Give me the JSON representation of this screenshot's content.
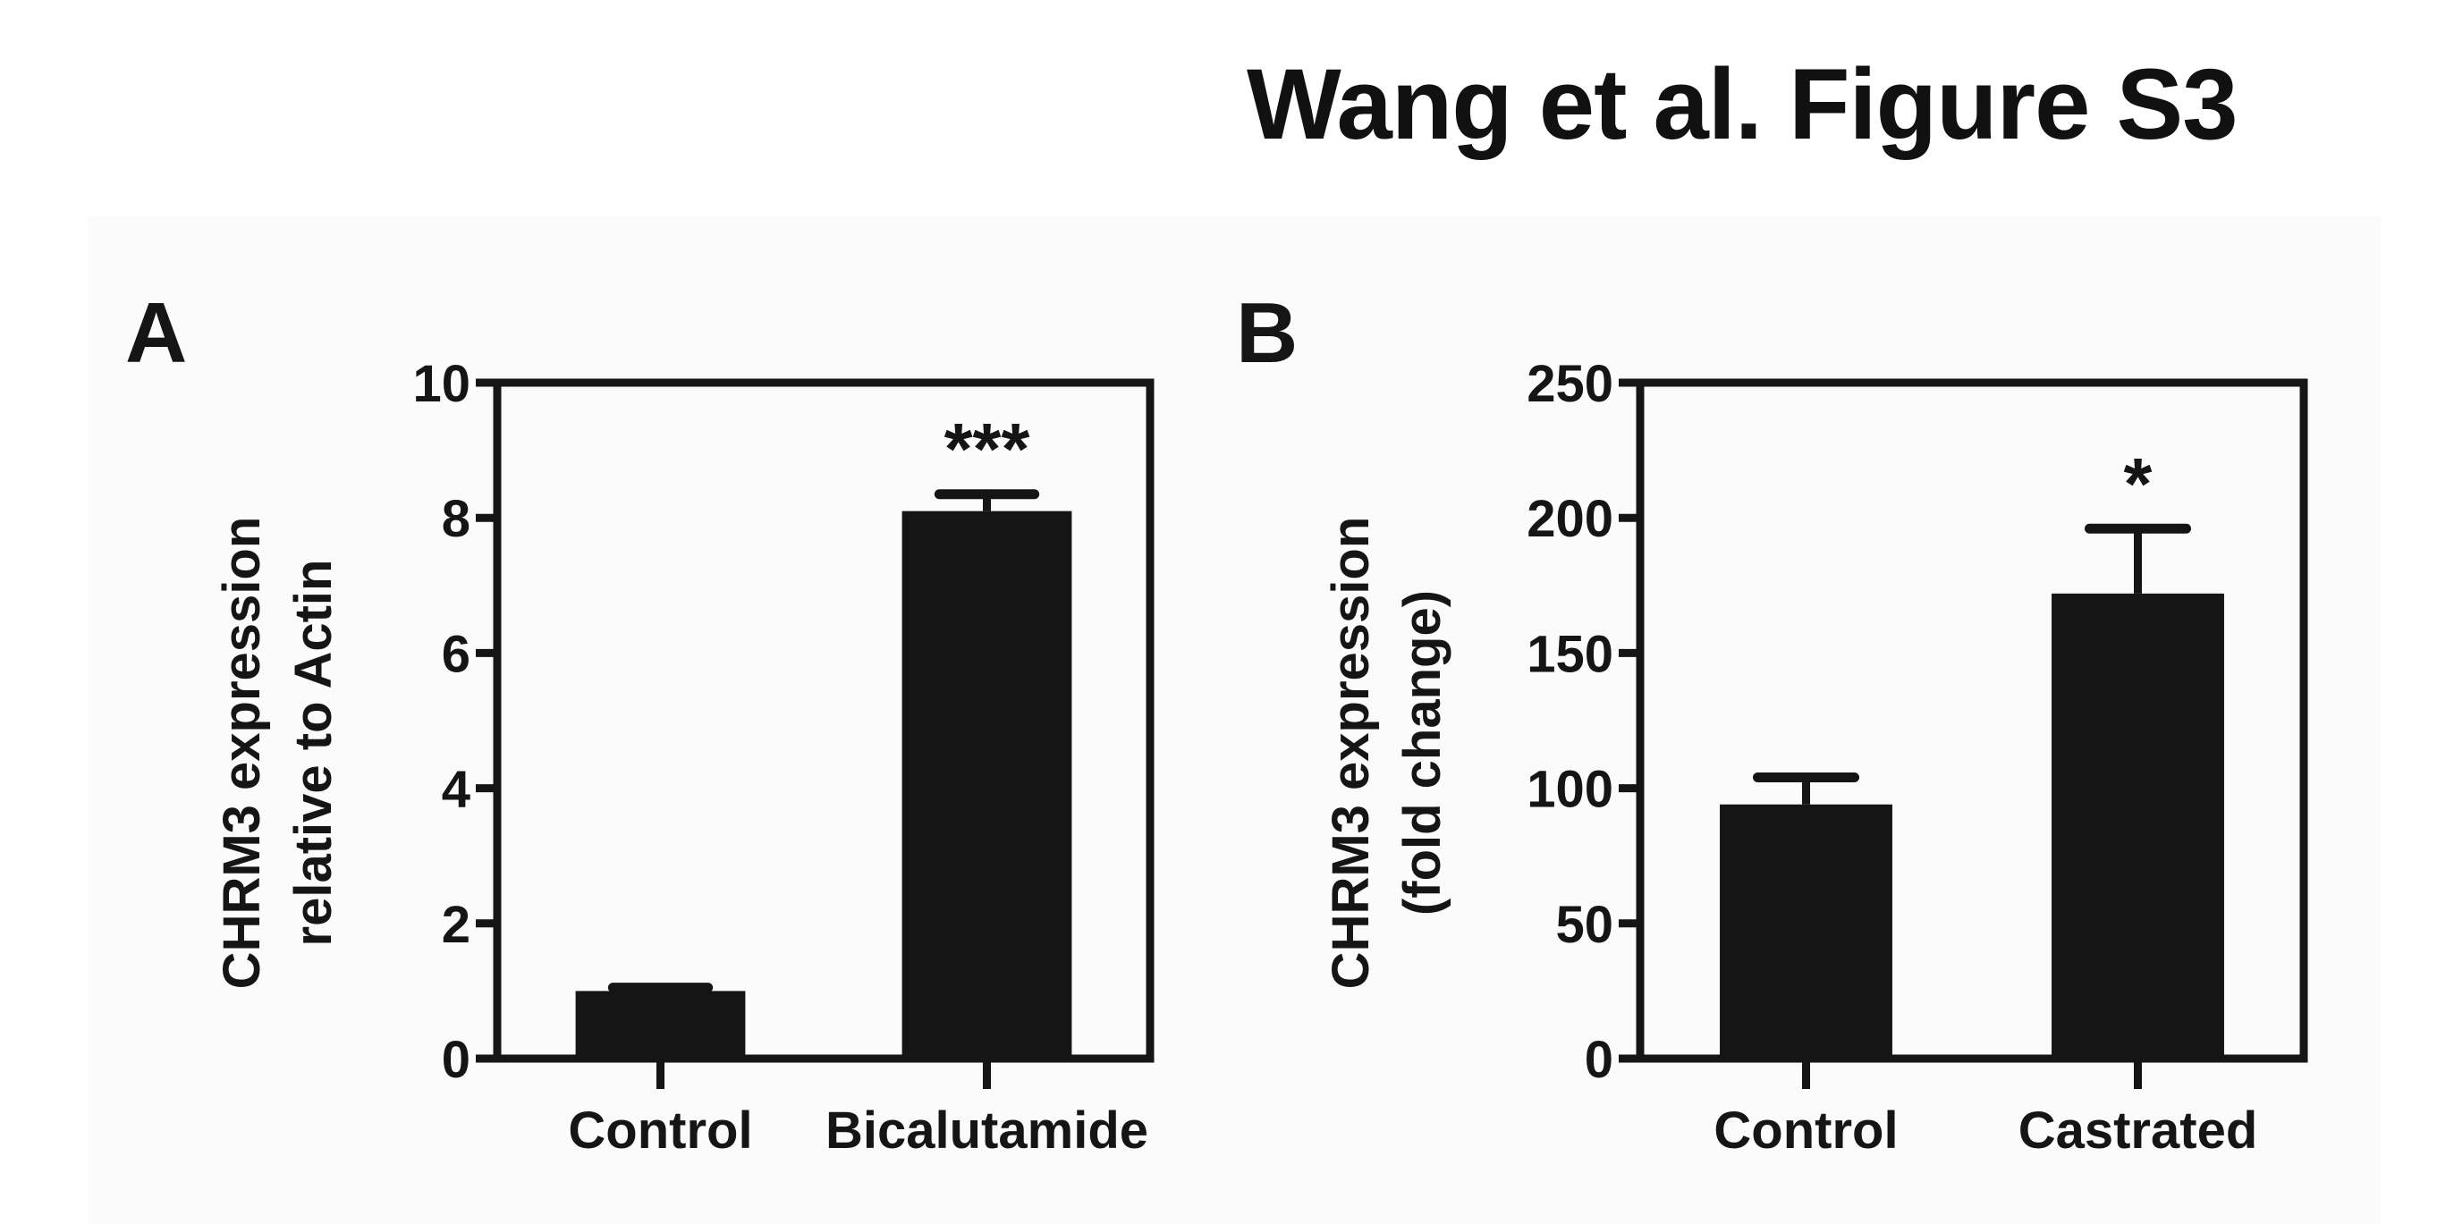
{
  "title": "Wang et al. Figure S3",
  "colors": {
    "bar": "#151515",
    "axis": "#151515",
    "panel_bg": "#fbfbfb",
    "page_bg": "#ffffff"
  },
  "chart_data": [
    {
      "panel": "A",
      "type": "bar",
      "title": "",
      "xlabel": "",
      "ylabel": "CHRM3 expression relative to Actin",
      "ylabel_lines": [
        "CHRM3 expression",
        "relative to Actin"
      ],
      "categories": [
        "Control",
        "Bicalutamide"
      ],
      "values": [
        1.0,
        8.1
      ],
      "error": [
        0.05,
        0.25
      ],
      "significance": [
        "",
        "***"
      ],
      "ylim": [
        0,
        10
      ],
      "yticks": [
        0,
        2,
        4,
        6,
        8,
        10
      ],
      "grid": false,
      "legend": null
    },
    {
      "panel": "B",
      "type": "bar",
      "title": "",
      "xlabel": "",
      "ylabel": "CHRM3 expression (fold change)",
      "ylabel_lines": [
        "CHRM3 expression",
        "(fold change)"
      ],
      "categories": [
        "Control",
        "Castrated"
      ],
      "values": [
        94,
        172
      ],
      "error": [
        10,
        24
      ],
      "significance": [
        "",
        "*"
      ],
      "ylim": [
        0,
        250
      ],
      "yticks": [
        0,
        50,
        100,
        150,
        200,
        250
      ],
      "grid": false,
      "legend": null
    }
  ]
}
